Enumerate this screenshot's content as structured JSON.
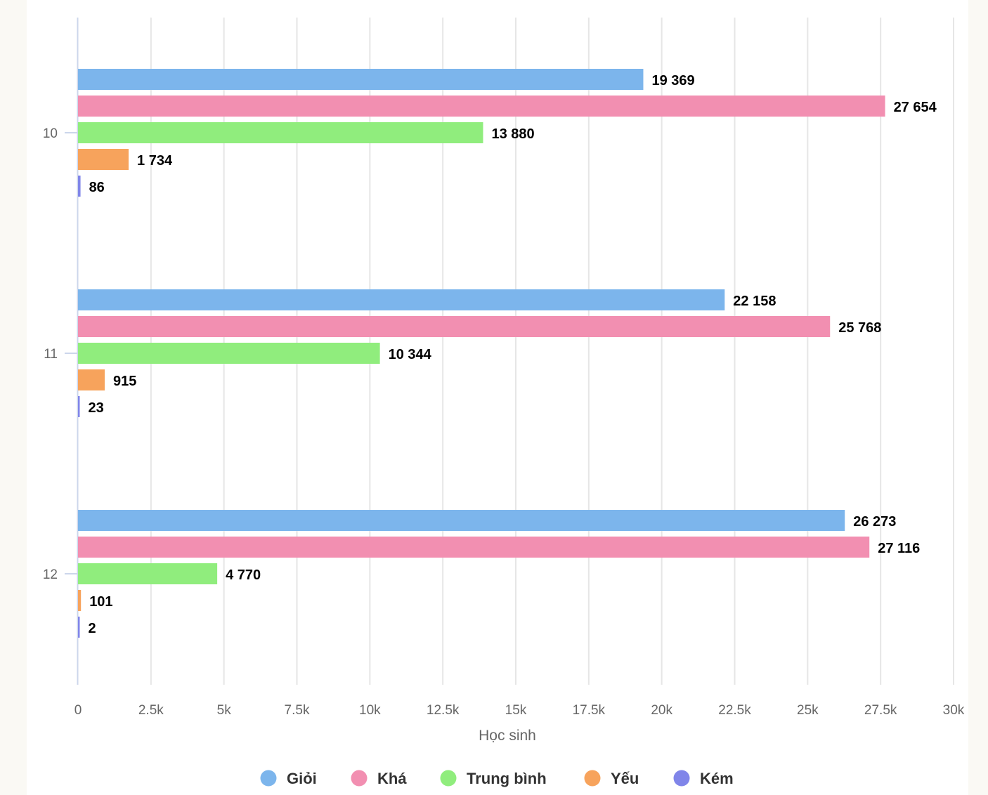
{
  "chart_data": {
    "type": "bar",
    "orientation": "horizontal",
    "title": "",
    "categories": [
      "10",
      "11",
      "12"
    ],
    "series": [
      {
        "name": "Giỏi",
        "color": "#7cb5ec",
        "values": [
          19369,
          22158,
          26273
        ],
        "labels": [
          "19 369",
          "22 158",
          "26 273"
        ]
      },
      {
        "name": "Khá",
        "color": "#f28fb1",
        "values": [
          27654,
          25768,
          27116
        ],
        "labels": [
          "27 654",
          "25 768",
          "27 116"
        ]
      },
      {
        "name": "Trung bình",
        "color": "#90ed7d",
        "values": [
          13880,
          10344,
          4770
        ],
        "labels": [
          "13 880",
          "10 344",
          "4 770"
        ]
      },
      {
        "name": "Yếu",
        "color": "#f7a35c",
        "values": [
          1734,
          915,
          101
        ],
        "labels": [
          "1 734",
          "915",
          "101"
        ]
      },
      {
        "name": "Kém",
        "color": "#8085e9",
        "values": [
          86,
          23,
          2
        ],
        "labels": [
          "86",
          "23",
          "2"
        ]
      }
    ],
    "xlabel": "Học sinh",
    "ylabel": "",
    "xlim": [
      0,
      30000
    ],
    "xticks": [
      0,
      2500,
      5000,
      7500,
      10000,
      12500,
      15000,
      17500,
      20000,
      22500,
      25000,
      27500,
      30000
    ],
    "xtick_labels": [
      "0",
      "2.5k",
      "5k",
      "7.5k",
      "10k",
      "12.5k",
      "15k",
      "17.5k",
      "20k",
      "22.5k",
      "25k",
      "27.5k",
      "30k"
    ],
    "grid": true,
    "legend_position": "bottom-center"
  }
}
